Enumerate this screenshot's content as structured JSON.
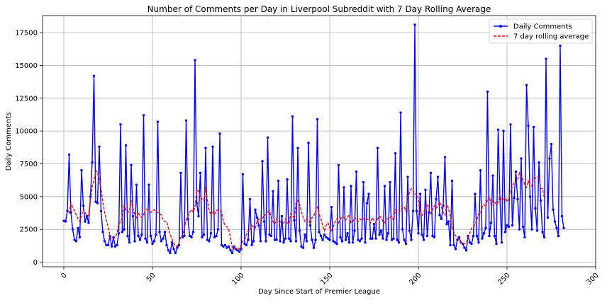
{
  "chart_data": {
    "type": "line",
    "title": "Number of Comments per Day in Liverpool Subreddit with 7 Day Rolling Average",
    "xlabel": "Day Since Start of Premier League",
    "ylabel": "Daily Comments",
    "xlim": [
      -12,
      300
    ],
    "ylim": [
      -350,
      18800
    ],
    "xticks": [
      0,
      50,
      100,
      150,
      200,
      250,
      300
    ],
    "yticks": [
      0,
      2500,
      5000,
      7500,
      10000,
      12500,
      15000,
      17500
    ],
    "xtick_labels": [
      "0",
      "50",
      "100",
      "150",
      "200",
      "250",
      "300"
    ],
    "ytick_labels": [
      "0",
      "2500",
      "5000",
      "7500",
      "10000",
      "12500",
      "15000",
      "17500"
    ],
    "grid": true,
    "legend_position": "top-right",
    "series": [
      {
        "name": "Daily Comments",
        "style": "line-with-markers",
        "color": "#0000ff",
        "values": [
          3150,
          3100,
          3900,
          8200,
          3800,
          2500,
          1700,
          1600,
          2600,
          1900,
          7000,
          4300,
          3100,
          3500,
          3000,
          5000,
          7600,
          14200,
          4600,
          4500,
          8800,
          3900,
          2300,
          1600,
          1300,
          1300,
          2000,
          1200,
          1900,
          1200,
          1300,
          2200,
          10500,
          2300,
          2500,
          8900,
          2000,
          1500,
          7400,
          3500,
          1600,
          5900,
          2000,
          1700,
          2100,
          11200,
          1800,
          1500,
          5900,
          2000,
          1400,
          1600,
          2100,
          10700,
          2300,
          1600,
          1800,
          2300,
          1300,
          900,
          700,
          1500,
          1000,
          700,
          1100,
          1300,
          6800,
          1900,
          2000,
          10800,
          3300,
          2000,
          1900,
          2300,
          15400,
          4500,
          3500,
          6800,
          1900,
          2100,
          8700,
          1700,
          1600,
          2200,
          8800,
          1900,
          2000,
          2500,
          9800,
          1300,
          1200,
          1300,
          1100,
          1200,
          900,
          700,
          1200,
          1000,
          900,
          800,
          1000,
          6700,
          1400,
          1300,
          1700,
          4800,
          1300,
          1600,
          4000,
          3400,
          2800,
          1600,
          7700,
          3100,
          1600,
          9500,
          2100,
          2000,
          5400,
          1700,
          1700,
          6200,
          1600,
          3500,
          1500,
          1800,
          6300,
          1800,
          1600,
          11100,
          3200,
          1600,
          8700,
          2400,
          1200,
          1100,
          2100,
          1600,
          9100,
          2800,
          1700,
          1100,
          1700,
          10900,
          2300,
          2000,
          1700,
          2100,
          1900,
          1800,
          1700,
          4200,
          1600,
          1500,
          1400,
          7400,
          1900,
          1600,
          5700,
          1700,
          2200,
          1500,
          5800,
          1500,
          2400,
          6900,
          1700,
          1600,
          1800,
          6100,
          1500,
          4500,
          5200,
          1800,
          1800,
          2900,
          1800,
          8700,
          2100,
          2400,
          1800,
          5800,
          1700,
          2200,
          6100,
          1700,
          1800,
          8300,
          1700,
          1500,
          11400,
          2500,
          1700,
          1400,
          6500,
          2400,
          1700,
          3900,
          18100,
          3900,
          2200,
          5200,
          2100,
          1700,
          5500,
          2000,
          3800,
          6800,
          2000,
          1900,
          4800,
          6500,
          3600,
          3300,
          4300,
          8000,
          2900,
          3100,
          1300,
          6200,
          1300,
          1000,
          1700,
          1900,
          1500,
          1400,
          1100,
          900,
          2000,
          1500,
          1400,
          2000,
          5200,
          2000,
          1500,
          7000,
          1800,
          2200,
          2600,
          13000,
          2000,
          3000,
          6600,
          2000,
          1400,
          10100,
          4900,
          1500,
          10000,
          2300,
          2800,
          2700,
          10500,
          2800,
          4900,
          6900,
          4800,
          2500,
          7900,
          2700,
          1900,
          13500,
          10400,
          5000,
          2500,
          10300,
          4100,
          2400,
          7600,
          4700,
          2300,
          1900,
          15500,
          3400,
          7900,
          9000,
          4000,
          3100,
          2600,
          2000,
          16500,
          3500,
          2600
        ]
      },
      {
        "name": "7 day rolling average",
        "style": "dashed",
        "color": "#ff0000",
        "start_x": 3,
        "values": [
          3700,
          4500,
          4200,
          3900,
          3600,
          3300,
          3100,
          3600,
          4000,
          3800,
          3500,
          3600,
          4700,
          5800,
          6200,
          7000,
          6800,
          6300,
          5600,
          4600,
          3800,
          3200,
          2700,
          2000,
          1800,
          1800,
          1900,
          2200,
          2900,
          3100,
          3400,
          4300,
          4000,
          3800,
          3900,
          4700,
          4100,
          3600,
          3400,
          3800,
          3500,
          3400,
          3600,
          4100,
          4000,
          3900,
          3800,
          3900,
          4000,
          3800,
          3800,
          3700,
          3600,
          3200,
          3100,
          3100,
          2600,
          2100,
          1800,
          1400,
          1300,
          1200,
          1500,
          2000,
          2000,
          2600,
          3200,
          3500,
          3800,
          4000,
          3800,
          4200,
          5500,
          5400,
          5000,
          4800,
          4700,
          5700,
          4700,
          3900,
          3600,
          3900,
          3600,
          3900,
          4000,
          4000,
          3800,
          3100,
          2800,
          2700,
          2500,
          1900,
          1100,
          1000,
          1000,
          1100,
          1000,
          1300,
          1600,
          1700,
          2100,
          2400,
          2400,
          2800,
          2700,
          2600,
          3100,
          3300,
          3100,
          3300,
          3600,
          3600,
          3800,
          3900,
          3400,
          3100,
          2900,
          3300,
          3100,
          3100,
          2800,
          3000,
          3300,
          3000,
          2900,
          3700,
          3600,
          3300,
          4500,
          4700,
          4400,
          3900,
          3400,
          3100,
          3300,
          3200,
          2900,
          3400,
          3500,
          3900,
          4200,
          3700,
          3300,
          2800,
          2400,
          2800,
          3000,
          2600,
          2400,
          2700,
          3100,
          3300,
          3000,
          3300,
          3500,
          3400,
          3200,
          3400,
          3600,
          3000,
          3100,
          3400,
          3300,
          3100,
          3300,
          3200,
          3300,
          3400,
          3300,
          3200,
          3000,
          3400,
          3200,
          3000,
          3300,
          3500,
          3400,
          3100,
          3000,
          3300,
          3300,
          3400,
          3500,
          3200,
          4000,
          3900,
          3800,
          4000,
          4200,
          4200,
          3900,
          5000,
          5300,
          5600,
          5500,
          5200,
          5200,
          4800,
          3800,
          3500,
          3800,
          4100,
          4400,
          4000,
          3700,
          4000,
          4300,
          4100,
          4300,
          4600,
          4200,
          3800,
          3600,
          4400,
          4100,
          3500,
          2600,
          2300,
          2000,
          1900,
          1700,
          1500,
          1400,
          1400,
          1500,
          1800,
          2200,
          2600,
          2700,
          2900,
          3200,
          3700,
          3700,
          4200,
          4400,
          4200,
          4800,
          5000,
          4400,
          4700,
          4600,
          4400,
          4600,
          5000,
          4700,
          4800,
          4900,
          4600,
          4800,
          5500,
          5700,
          6100,
          6100,
          6300,
          6800,
          6500,
          6300,
          5900,
          5700,
          6200,
          5700,
          5800,
          6400,
          6400,
          6500,
          6500,
          5600,
          5600,
          5000
        ]
      }
    ]
  }
}
